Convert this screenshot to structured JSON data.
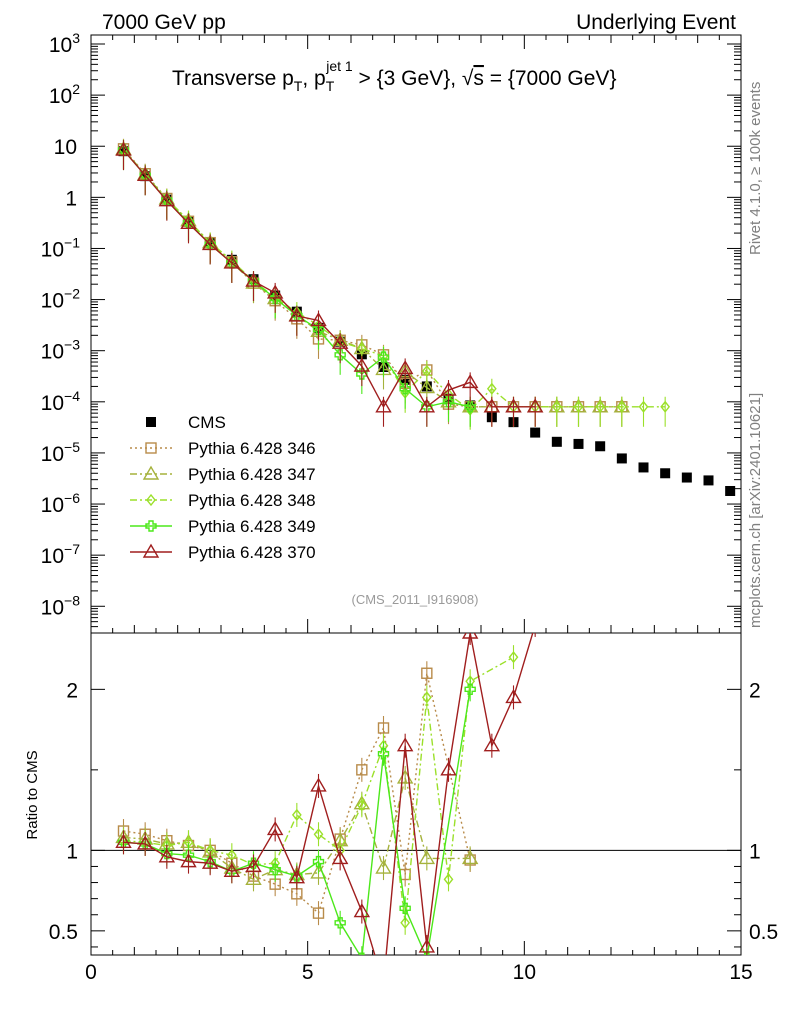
{
  "header": {
    "left": "7000 GeV pp",
    "right": "Underlying Event"
  },
  "side_labels": {
    "rivet": "Rivet 4.1.0, ≥ 100k events",
    "mcplots": "mcplots.cern.ch [arXiv:2401.10621]"
  },
  "analysis_tag": "(CMS_2011_I916908)",
  "chart_data": [
    {
      "type": "scatter",
      "panel": "main",
      "title_parts": {
        "a": "Transverse p",
        "a_sub": "T",
        "b": ", p",
        "b_sub": "T",
        "b_sup": "jet 1",
        "c": " > {3 GeV}, ",
        "sqrt_s": "s",
        "d": " = {7000 GeV}"
      },
      "xlabel": "",
      "ylabel": "",
      "xlim": [
        0,
        15
      ],
      "ylim": [
        3e-09,
        1500
      ],
      "yscale": "log",
      "legend_position": "middle-left",
      "x_ticks": [
        0,
        5,
        10,
        15
      ],
      "y_ticks": [
        {
          "value": 1000,
          "base": "10",
          "exp": "3"
        },
        {
          "value": 100,
          "base": "10",
          "exp": "2"
        },
        {
          "value": 10,
          "base": "10",
          "exp": ""
        },
        {
          "value": 1,
          "base": "1",
          "exp": ""
        },
        {
          "value": 0.1,
          "base": "10",
          "exp": "−1"
        },
        {
          "value": 0.01,
          "base": "10",
          "exp": "−2"
        },
        {
          "value": 0.001,
          "base": "10",
          "exp": "−3"
        },
        {
          "value": 0.0001,
          "base": "10",
          "exp": "−4"
        },
        {
          "value": 1e-05,
          "base": "10",
          "exp": "−5"
        },
        {
          "value": 1e-06,
          "base": "10",
          "exp": "−6"
        },
        {
          "value": 1e-07,
          "base": "10",
          "exp": "−7"
        },
        {
          "value": 1e-08,
          "base": "10",
          "exp": "−8"
        }
      ],
      "series": [
        {
          "name": "CMS",
          "color": "#000000",
          "marker": "square-filled",
          "line": "none",
          "x": [
            0.75,
            1.25,
            1.75,
            2.25,
            2.75,
            3.25,
            3.75,
            4.25,
            4.75,
            5.25,
            5.75,
            6.25,
            6.75,
            7.25,
            7.75,
            8.25,
            8.75,
            9.25,
            9.75,
            10.25,
            10.75,
            11.25,
            11.75,
            12.25,
            12.75,
            13.25,
            13.75,
            14.25,
            14.75
          ],
          "y": [
            8.0,
            2.6,
            0.9,
            0.33,
            0.13,
            0.06,
            0.025,
            0.012,
            0.0058,
            0.0028,
            0.0015,
            0.00085,
            0.00048,
            0.00027,
            0.0002,
            0.000115,
            8.5e-05,
            5e-05,
            4e-05,
            2.5e-05,
            1.65e-05,
            1.5e-05,
            1.35e-05,
            7.8e-06,
            5.2e-06,
            4e-06,
            3.3e-06,
            2.9e-06,
            1.8e-06
          ]
        },
        {
          "name": "Pythia 6.428 346",
          "color": "#B88B4A",
          "marker": "square-open",
          "line": "dotted",
          "x": [
            0.75,
            1.25,
            1.75,
            2.25,
            2.75,
            3.25,
            3.75,
            4.25,
            4.75,
            5.25,
            5.75,
            6.25,
            6.75,
            7.25,
            7.75,
            8.25,
            8.75,
            9.25,
            9.75,
            10.25,
            10.75,
            11.25,
            11.75,
            12.25
          ],
          "y": [
            8.9,
            2.9,
            0.95,
            0.34,
            0.13,
            0.055,
            0.021,
            0.0095,
            0.0042,
            0.0017,
            0.0016,
            0.0013,
            0.00083,
            0.00023,
            0.00042,
            9e-05,
            8e-05,
            8e-05,
            8e-05,
            8e-05,
            8e-05,
            8e-05,
            8e-05,
            8e-05
          ]
        },
        {
          "name": "Pythia 6.428 347",
          "color": "#A5B23C",
          "marker": "triangle-open",
          "line": "dashdot",
          "x": [
            0.75,
            1.25,
            1.75,
            2.25,
            2.75,
            3.25,
            3.75,
            4.25,
            4.75,
            5.25,
            5.75,
            6.25,
            6.75,
            7.25,
            7.75,
            8.25,
            8.75,
            9.25,
            9.75,
            10.25,
            10.75,
            11.25,
            11.75,
            12.25
          ],
          "y": [
            8.7,
            2.8,
            0.93,
            0.35,
            0.13,
            0.053,
            0.021,
            0.0105,
            0.0049,
            0.0024,
            0.0016,
            0.0011,
            0.00043,
            0.00039,
            0.00019,
            0.0001,
            8e-05,
            8e-05,
            8e-05,
            8e-05,
            8e-05,
            8e-05,
            8e-05,
            8e-05
          ]
        },
        {
          "name": "Pythia 6.428 348",
          "color": "#9BE02A",
          "marker": "diamond",
          "line": "dashdot",
          "x": [
            0.75,
            1.25,
            1.75,
            2.25,
            2.75,
            3.25,
            3.75,
            4.25,
            4.75,
            5.25,
            5.75,
            6.25,
            6.75,
            7.25,
            7.75,
            8.25,
            8.75,
            9.25,
            9.75,
            10.25,
            10.75,
            11.25,
            11.75,
            12.25,
            12.75,
            13.25
          ],
          "y": [
            8.5,
            2.75,
            0.93,
            0.35,
            0.13,
            0.058,
            0.023,
            0.011,
            0.0057,
            0.0031,
            0.0015,
            0.0011,
            0.00079,
            0.00015,
            0.0004,
            0.00014,
            7e-05,
            0.00018,
            8e-05,
            8e-05,
            8e-05,
            8e-05,
            8e-05,
            8e-05,
            8e-05,
            8e-05
          ]
        },
        {
          "name": "Pythia 6.428 349",
          "color": "#4CE81A",
          "marker": "cross-thick",
          "line": "solid",
          "x": [
            0.75,
            1.25,
            1.75,
            2.25,
            2.75,
            3.25,
            3.75,
            4.25,
            4.75,
            5.25,
            5.75,
            6.25,
            6.75,
            7.25,
            7.75,
            8.25,
            8.75
          ],
          "y": [
            8.4,
            2.7,
            0.88,
            0.32,
            0.12,
            0.052,
            0.023,
            0.0105,
            0.0049,
            0.0026,
            0.00083,
            0.00035,
            0.00075,
            0.00018,
            8e-05,
            0.0001,
            8e-05
          ]
        },
        {
          "name": "Pythia 6.428 370",
          "color": "#A01E1E",
          "marker": "triangle-open",
          "line": "solid",
          "x": [
            0.75,
            1.25,
            1.75,
            2.25,
            2.75,
            3.25,
            3.75,
            4.25,
            4.75,
            5.25,
            5.75,
            6.25,
            6.75,
            7.25,
            7.75,
            8.25,
            8.75,
            9.25,
            9.75,
            10.25
          ],
          "y": [
            8.4,
            2.7,
            0.86,
            0.31,
            0.12,
            0.052,
            0.023,
            0.0135,
            0.0048,
            0.0039,
            0.0014,
            0.0005,
            8e-05,
            0.00045,
            8e-05,
            0.00017,
            0.00024,
            8e-05,
            8e-05,
            8e-05
          ]
        }
      ]
    },
    {
      "type": "line",
      "panel": "ratio",
      "ylabel": "Ratio to CMS",
      "xlabel": "",
      "xlim": [
        0,
        15
      ],
      "ylim": [
        0.35,
        2.35
      ],
      "reference_line": 1,
      "y_ticks": [
        "0.5",
        "1",
        "2"
      ],
      "x_ticks": [
        "0",
        "5",
        "10",
        "15"
      ],
      "series": [
        {
          "name": "Pythia 6.428 346",
          "x": [
            0.75,
            1.25,
            1.75,
            2.25,
            2.75,
            3.25,
            3.75,
            4.25,
            4.75,
            5.25,
            5.75,
            6.25,
            6.75,
            7.25,
            7.75,
            8.75
          ],
          "y": [
            1.12,
            1.1,
            1.06,
            1.03,
            1.0,
            0.92,
            0.84,
            0.79,
            0.73,
            0.61,
            1.07,
            1.5,
            1.76,
            0.85,
            2.1,
            0.94
          ]
        },
        {
          "name": "Pythia 6.428 347",
          "x": [
            0.75,
            1.25,
            1.75,
            2.25,
            2.75,
            3.25,
            3.75,
            4.25,
            4.75,
            5.25,
            5.75,
            6.25,
            6.75,
            7.25,
            7.75,
            8.75
          ],
          "y": [
            1.08,
            1.07,
            1.04,
            1.05,
            0.99,
            0.89,
            0.82,
            0.88,
            0.85,
            0.86,
            1.06,
            1.29,
            0.89,
            1.45,
            0.95,
            0.95
          ]
        },
        {
          "name": "Pythia 6.428 348",
          "x": [
            0.75,
            1.25,
            1.75,
            2.25,
            2.75,
            3.25,
            3.75,
            4.25,
            4.75,
            5.25,
            5.75,
            6.25,
            6.75,
            7.25,
            7.75,
            8.25,
            8.75,
            9.75
          ],
          "y": [
            1.06,
            1.05,
            1.03,
            1.05,
            1.0,
            0.97,
            0.91,
            0.92,
            1.22,
            1.1,
            1.0,
            1.28,
            1.65,
            0.55,
            1.95,
            0.82,
            2.05,
            2.2
          ]
        },
        {
          "name": "Pythia 6.428 349",
          "x": [
            0.75,
            1.25,
            1.75,
            2.25,
            2.75,
            3.25,
            3.75,
            4.25,
            4.75,
            5.25,
            5.75,
            6.25,
            6.75,
            7.25,
            7.75,
            8.75
          ],
          "y": [
            1.05,
            1.04,
            0.98,
            0.97,
            0.93,
            0.87,
            0.92,
            0.88,
            0.84,
            0.93,
            0.55,
            0.33,
            1.6,
            0.64,
            0.33,
            2.0
          ]
        },
        {
          "name": "Pythia 6.428 370",
          "x": [
            0.75,
            1.25,
            1.75,
            2.25,
            2.75,
            3.25,
            3.75,
            4.25,
            4.75,
            5.25,
            5.75,
            6.25,
            6.75,
            7.25,
            7.75,
            8.25,
            8.75,
            9.25,
            9.75,
            10.25
          ],
          "y": [
            1.05,
            1.04,
            0.96,
            0.93,
            0.92,
            0.87,
            0.9,
            1.13,
            0.83,
            1.4,
            0.95,
            0.62,
            0.17,
            1.65,
            0.4,
            1.5,
            2.35,
            1.65,
            1.95,
            2.4
          ]
        }
      ]
    }
  ]
}
